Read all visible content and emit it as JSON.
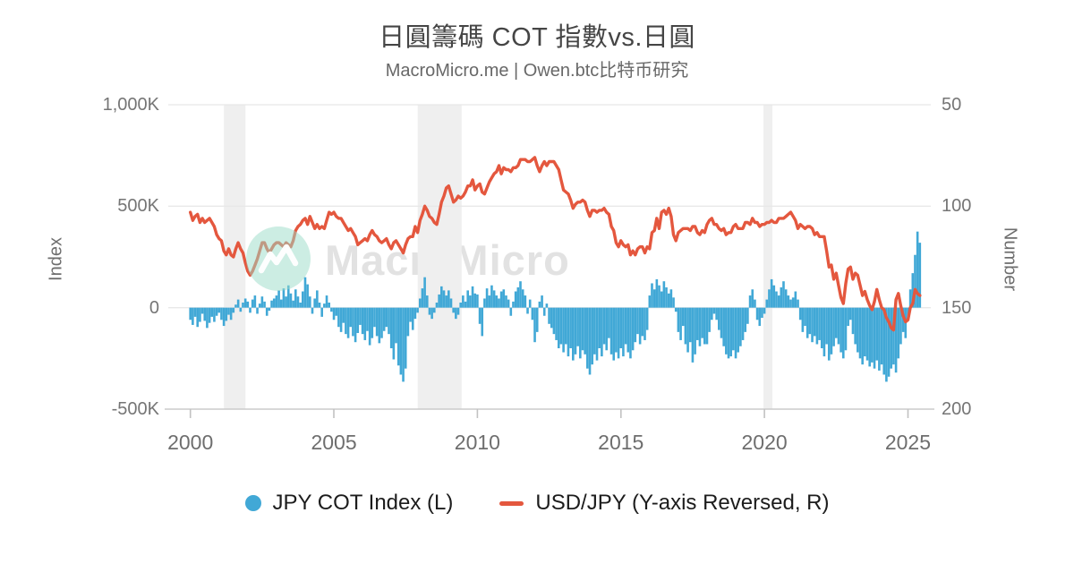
{
  "header": {
    "title": "日圓籌碼 COT 指數vs.日圓",
    "subtitle": "MacroMicro.me | Owen.btc比特币研究"
  },
  "watermark": {
    "brand": "MacroMicro"
  },
  "legend": [
    {
      "label": "JPY COT Index (L)",
      "marker": "circle",
      "color": "#41A8D6"
    },
    {
      "label": "USD/JPY (Y-axis Reversed, R)",
      "marker": "dash",
      "color": "#E4573E"
    }
  ],
  "chart_data": {
    "type": "bar",
    "title": "日圓籌碼 COT 指數vs.日圓",
    "x": {
      "start_year": 2000,
      "points_per_year": 12,
      "ticks": [
        2000,
        2005,
        2010,
        2015,
        2020,
        2025
      ]
    },
    "left_axis": {
      "label": "Index",
      "unit": "K",
      "range": [
        1000,
        -500
      ],
      "tick_values": [
        1000,
        500,
        0,
        -500
      ],
      "tick_labels": [
        "1,000K",
        "500K",
        "0",
        "-500K"
      ]
    },
    "right_axis": {
      "label": "Number",
      "reversed": true,
      "range": [
        50,
        200
      ],
      "tick_values": [
        50,
        100,
        150,
        200
      ],
      "tick_labels": [
        "50",
        "100",
        "150",
        "200"
      ]
    },
    "bands": [
      [
        2001.17,
        2001.92
      ],
      [
        2007.92,
        2009.45
      ],
      [
        2019.97,
        2020.28
      ]
    ],
    "band_color": "#efefef",
    "grid_color": "#e8e8e8",
    "axis_line_color": "#cccccc",
    "series": [
      {
        "name": "JPY COT Index (L)",
        "type": "bar",
        "axis": "left",
        "color": "#41A8D6",
        "values": [
          -60,
          -85,
          -45,
          -95,
          -70,
          -30,
          -65,
          -100,
          -75,
          -45,
          -70,
          -40,
          -25,
          -60,
          -90,
          -65,
          -35,
          -60,
          -25,
          15,
          40,
          -20,
          25,
          45,
          30,
          -25,
          40,
          60,
          -30,
          20,
          55,
          30,
          -40,
          -15,
          35,
          45,
          60,
          85,
          40,
          95,
          55,
          110,
          70,
          35,
          90,
          55,
          25,
          80,
          150,
          115,
          55,
          -30,
          45,
          85,
          25,
          -45,
          20,
          60,
          25,
          -20,
          -60,
          -40,
          -95,
          -120,
          -75,
          -130,
          -150,
          -95,
          -140,
          -170,
          -125,
          -85,
          -130,
          -160,
          -115,
          -185,
          -150,
          -95,
          -140,
          -175,
          -150,
          -115,
          -95,
          -130,
          -200,
          -255,
          -175,
          -285,
          -330,
          -365,
          -300,
          -140,
          -70,
          -110,
          -55,
          -25,
          45,
          95,
          150,
          60,
          -35,
          -55,
          -25,
          25,
          65,
          105,
          85,
          60,
          85,
          45,
          -25,
          -55,
          -35,
          25,
          60,
          30,
          85,
          60,
          105,
          70,
          65,
          -80,
          -140,
          45,
          95,
          60,
          110,
          85,
          60,
          45,
          80,
          90,
          60,
          40,
          -40,
          30,
          80,
          100,
          130,
          90,
          60,
          -30,
          40,
          -60,
          -170,
          -120,
          30,
          60,
          -40,
          20,
          -80,
          -100,
          -130,
          -160,
          -200,
          -180,
          -220,
          -180,
          -240,
          -200,
          -260,
          -230,
          -190,
          -250,
          -210,
          -230,
          -300,
          -330,
          -280,
          -230,
          -260,
          -200,
          -240,
          -180,
          -210,
          -150,
          -230,
          -260,
          -220,
          -250,
          -200,
          -240,
          -180,
          -220,
          -250,
          -210,
          -170,
          -130,
          -180,
          -140,
          -160,
          -110,
          60,
          120,
          90,
          140,
          110,
          80,
          130,
          100,
          70,
          90,
          50,
          -20,
          -120,
          -160,
          -90,
          -180,
          -220,
          -170,
          -270,
          -230,
          -160,
          -190,
          -150,
          -180,
          -180,
          -120,
          -60,
          -30,
          -60,
          -110,
          -150,
          -190,
          -230,
          -250,
          -240,
          -210,
          -250,
          -220,
          -190,
          -160,
          -120,
          -80,
          60,
          90,
          40,
          -60,
          -90,
          -50,
          -30,
          40,
          90,
          140,
          110,
          80,
          60,
          100,
          130,
          90,
          60,
          40,
          50,
          80,
          40,
          -60,
          -120,
          -90,
          -150,
          -130,
          -170,
          -140,
          -180,
          -160,
          -200,
          -240,
          -180,
          -260,
          -230,
          -190,
          -150,
          -180,
          -220,
          -250,
          -210,
          -90,
          -60,
          -130,
          -180,
          -220,
          -250,
          -280,
          -240,
          -260,
          -290,
          -270,
          -300,
          -260,
          -310,
          -280,
          -330,
          -365,
          -340,
          -300,
          -280,
          -320,
          -250,
          -180,
          -120,
          -150,
          -60,
          90,
          170,
          260,
          375,
          320
        ]
      },
      {
        "name": "USD/JPY (Y-axis Reversed, R)",
        "type": "line",
        "axis": "right",
        "color": "#E4573E",
        "values": [
          103,
          107,
          105,
          104,
          108,
          106,
          108,
          107,
          106,
          108,
          110,
          114,
          116,
          117,
          122,
          124,
          121,
          124,
          125,
          121,
          118,
          121,
          123,
          128,
          132,
          134,
          132,
          129,
          126,
          122,
          118,
          118,
          121,
          123,
          121,
          119,
          118,
          118,
          119,
          120,
          118,
          119,
          120,
          117,
          112,
          110,
          109,
          107,
          106,
          109,
          105,
          108,
          111,
          109,
          111,
          110,
          111,
          107,
          103,
          104,
          103,
          105,
          106,
          106,
          108,
          110,
          112,
          111,
          113,
          115,
          119,
          118,
          117,
          116,
          117,
          114,
          112,
          114,
          115,
          117,
          118,
          117,
          116,
          119,
          121,
          118,
          117,
          119,
          121,
          123,
          119,
          116,
          115,
          115,
          110,
          113,
          107,
          104,
          100,
          102,
          105,
          106,
          108,
          109,
          104,
          98,
          95,
          91,
          90,
          94,
          98,
          97,
          95,
          96,
          95,
          93,
          90,
          90,
          87,
          92,
          90,
          89,
          93,
          94,
          91,
          88,
          86,
          84,
          83,
          80,
          84,
          81,
          82,
          82,
          83,
          81,
          81,
          80,
          77,
          77,
          77,
          78,
          78,
          77,
          76,
          80,
          83,
          80,
          78,
          80,
          78,
          78,
          78,
          80,
          82,
          87,
          92,
          93,
          94,
          97,
          101,
          99,
          98,
          98,
          97,
          98,
          102,
          105,
          102,
          102,
          103,
          102,
          102,
          101,
          103,
          104,
          110,
          112,
          118,
          120,
          117,
          119,
          120,
          119,
          124,
          122,
          124,
          121,
          120,
          120,
          123,
          120,
          121,
          113,
          112,
          106,
          111,
          103,
          102,
          104,
          101,
          105,
          114,
          117,
          113,
          112,
          111,
          111,
          111,
          112,
          110,
          110,
          113,
          114,
          112,
          113,
          109,
          107,
          106,
          109,
          109,
          111,
          112,
          111,
          114,
          113,
          113,
          110,
          109,
          111,
          111,
          111,
          108,
          108,
          109,
          106,
          108,
          108,
          110,
          109,
          109,
          108,
          108,
          107,
          108,
          108,
          106,
          106,
          106,
          105,
          104,
          103,
          105,
          107,
          111,
          109,
          110,
          111,
          110,
          110,
          111,
          114,
          113,
          115,
          115,
          115,
          122,
          130,
          129,
          136,
          133,
          139,
          145,
          148,
          138,
          131,
          130,
          136,
          133,
          134,
          139,
          144,
          142,
          146,
          149,
          151,
          147,
          141,
          146,
          150,
          151,
          155,
          157,
          160,
          161,
          146,
          143,
          149,
          154,
          157,
          156,
          150,
          148,
          141,
          143,
          144
        ]
      }
    ]
  }
}
